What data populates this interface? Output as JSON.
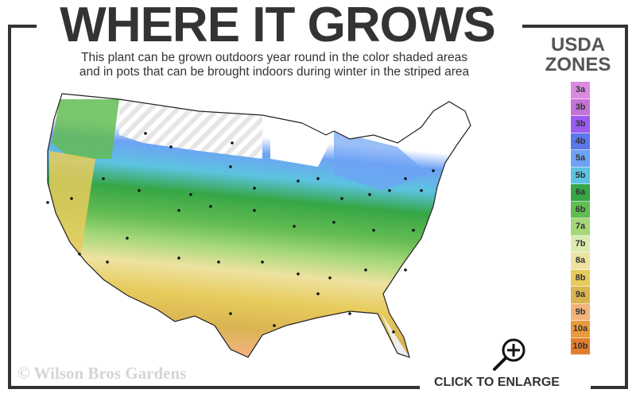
{
  "header": {
    "title": "WHERE IT GROWS",
    "subtitle_line1": "This plant can be grown outdoors year round in the color shaded areas",
    "subtitle_line2": "and in pots that can be brought indoors during winter in the striped area"
  },
  "legend": {
    "title_line1": "USDA",
    "title_line2": "ZONES",
    "zones": [
      {
        "label": "3a",
        "color": "#d98be0"
      },
      {
        "label": "3b",
        "color": "#c573d6"
      },
      {
        "label": "3b",
        "color": "#9b5cf0"
      },
      {
        "label": "4b",
        "color": "#5a78ea"
      },
      {
        "label": "5a",
        "color": "#6ea2f5"
      },
      {
        "label": "5b",
        "color": "#5cc3e0"
      },
      {
        "label": "6a",
        "color": "#36a646"
      },
      {
        "label": "6b",
        "color": "#63bc52"
      },
      {
        "label": "7a",
        "color": "#a6d87a"
      },
      {
        "label": "7b",
        "color": "#dcebb0"
      },
      {
        "label": "8a",
        "color": "#ede2a0"
      },
      {
        "label": "8b",
        "color": "#e8cb5c"
      },
      {
        "label": "9a",
        "color": "#d9b552"
      },
      {
        "label": "9b",
        "color": "#f1b37d"
      },
      {
        "label": "10a",
        "color": "#ea9a3c"
      },
      {
        "label": "10b",
        "color": "#e27d2e"
      }
    ]
  },
  "map": {
    "striped_area": "not hardy outdoors"
  },
  "footer": {
    "copyright": "© Wilson Bros Gardens",
    "enlarge_label": "CLICK TO ENLARGE",
    "enlarge_icon": "zoom-in-icon"
  }
}
